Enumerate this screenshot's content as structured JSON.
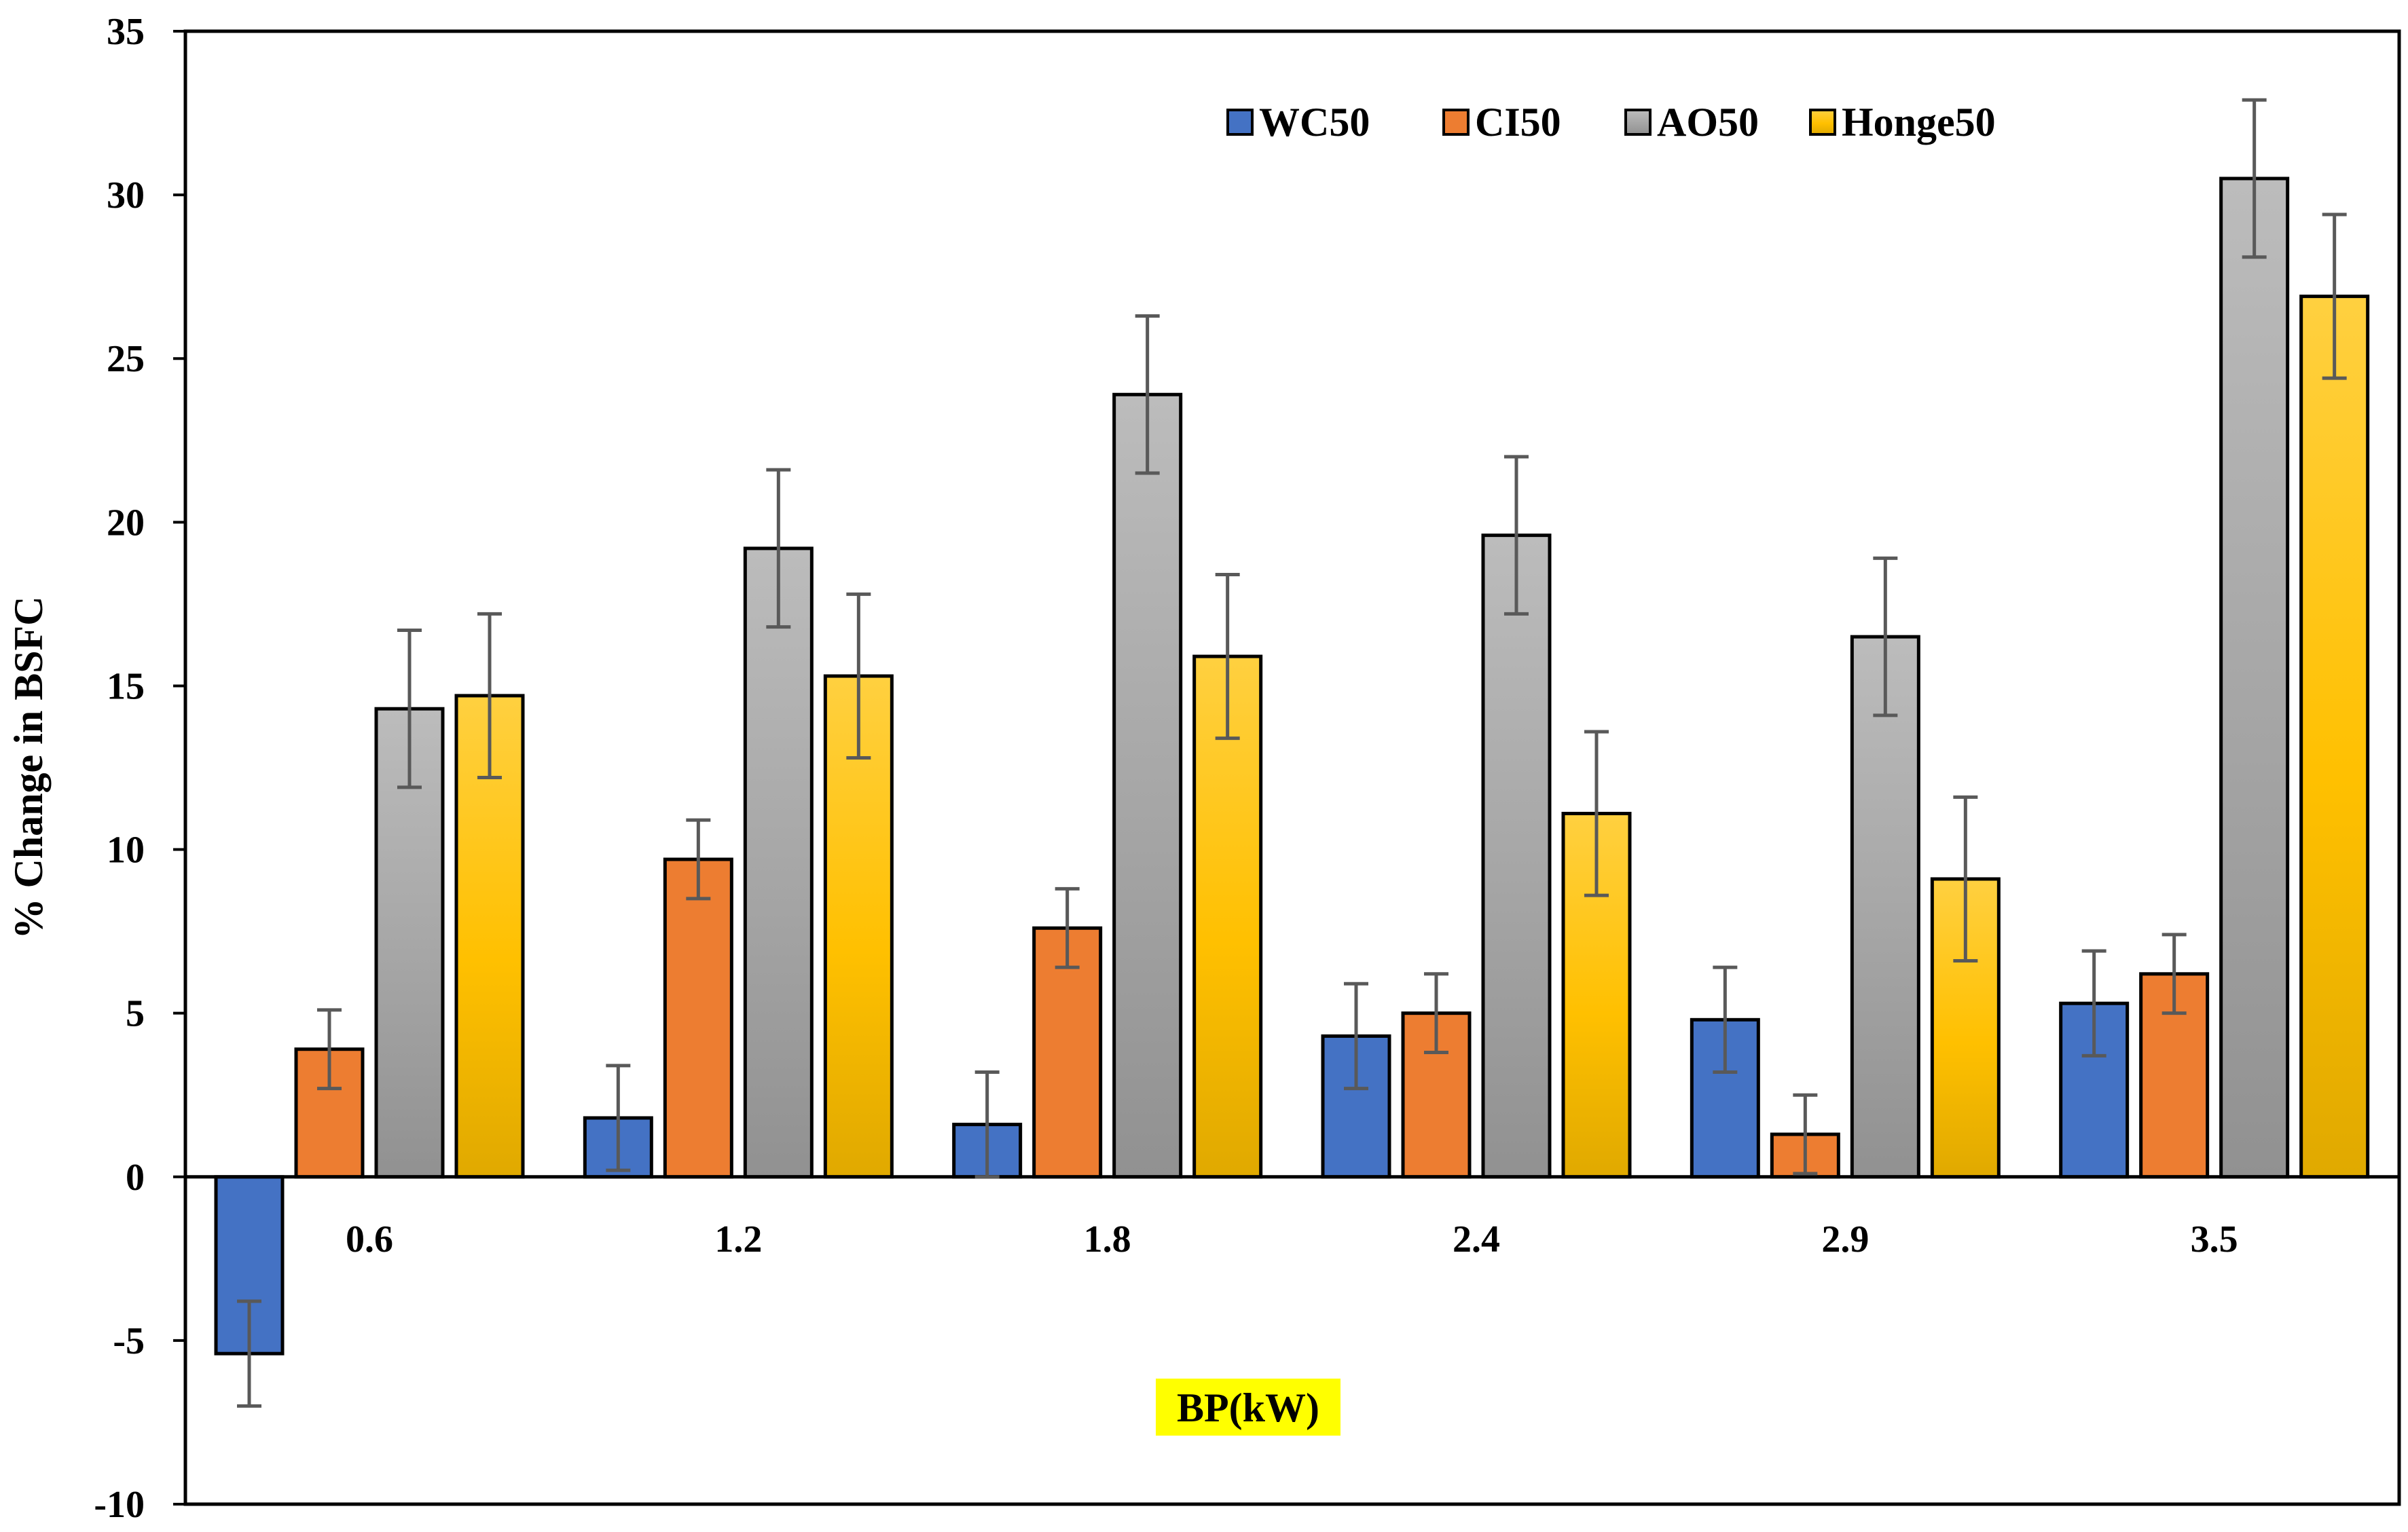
{
  "chart_data": {
    "type": "bar",
    "title": "",
    "xlabel": "BP(kW)",
    "ylabel": "% Change in BSFC",
    "ylim": [
      -10,
      35
    ],
    "yticks": [
      -10,
      -5,
      0,
      5,
      10,
      15,
      20,
      25,
      30,
      35
    ],
    "categories": [
      "0.6",
      "1.2",
      "1.8",
      "2.4",
      "2.9",
      "3.5"
    ],
    "legend_position": "top-right",
    "series": [
      {
        "name": "WC50",
        "color": "#4472C4",
        "values": [
          -5.4,
          1.8,
          1.6,
          4.3,
          4.8,
          5.3
        ],
        "error": [
          1.6,
          1.6,
          1.6,
          1.6,
          1.6,
          1.6
        ]
      },
      {
        "name": "CI50",
        "color": "#ED7D31",
        "values": [
          3.9,
          9.7,
          7.6,
          5.0,
          1.3,
          6.2
        ],
        "error": [
          1.2,
          1.2,
          1.2,
          1.2,
          1.2,
          1.2
        ]
      },
      {
        "name": "AO50",
        "color": "#A5A5A5",
        "values": [
          14.3,
          19.2,
          23.9,
          19.6,
          16.5,
          30.5
        ],
        "error": [
          2.4,
          2.4,
          2.4,
          2.4,
          2.4,
          2.4
        ]
      },
      {
        "name": "Honge50",
        "color": "#FFC000",
        "values": [
          14.7,
          15.3,
          15.9,
          11.1,
          9.1,
          26.9
        ],
        "error": [
          2.5,
          2.5,
          2.5,
          2.5,
          2.5,
          2.5
        ]
      }
    ]
  }
}
